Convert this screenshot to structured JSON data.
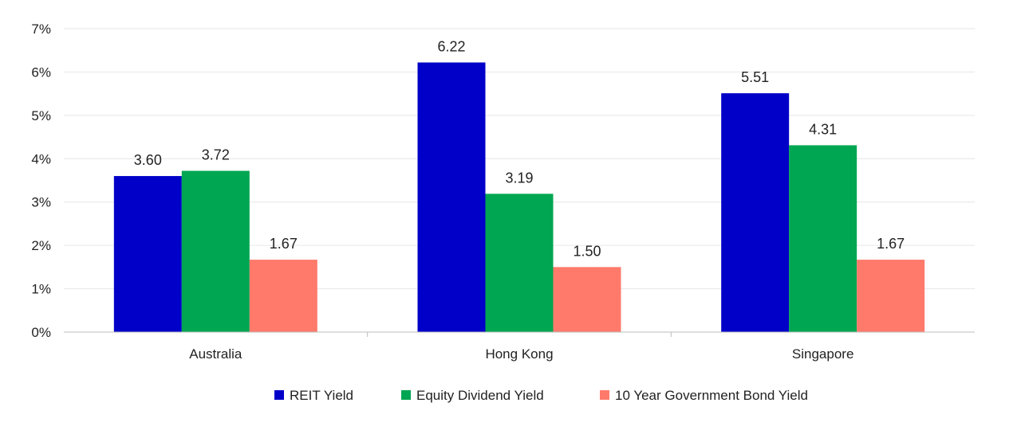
{
  "chart_data": {
    "type": "bar",
    "categories": [
      "Australia",
      "Hong Kong",
      "Singapore"
    ],
    "series": [
      {
        "name": "REIT Yield",
        "values": [
          3.6,
          6.22,
          5.51
        ],
        "labels": [
          "3.60",
          "6.22",
          "5.51"
        ],
        "color": "#0000c8"
      },
      {
        "name": "Equity Dividend Yield",
        "values": [
          3.72,
          3.19,
          4.31
        ],
        "labels": [
          "3.72",
          "3.19",
          "4.31"
        ],
        "color": "#00a651"
      },
      {
        "name": "10 Year Government Bond Yield",
        "values": [
          1.67,
          1.5,
          1.67
        ],
        "labels": [
          "1.67",
          "1.50",
          "1.67"
        ],
        "color": "#ff7a6b"
      }
    ],
    "yticks": [
      "0%",
      "1%",
      "2%",
      "3%",
      "4%",
      "5%",
      "6%",
      "7%"
    ],
    "ylim": [
      0,
      7
    ],
    "grid": true,
    "legend_position": "bottom"
  }
}
